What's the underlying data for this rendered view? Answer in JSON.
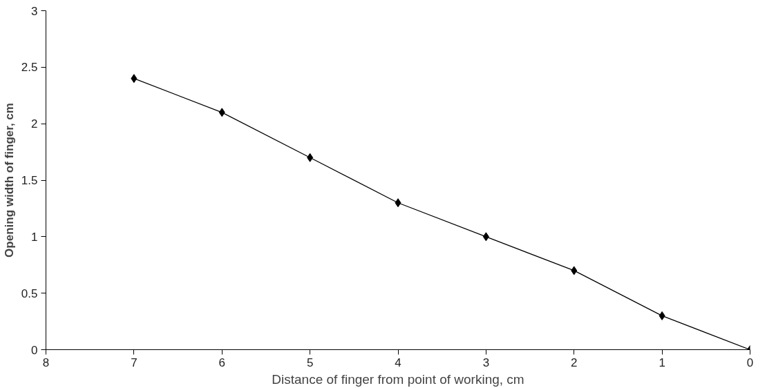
{
  "chart_data": {
    "type": "line",
    "xlabel": "Distance of finger from point of working, cm",
    "ylabel": "Opening width of finger, cm",
    "x": [
      7,
      6,
      5,
      4,
      3,
      2,
      1,
      0
    ],
    "series": [
      {
        "color": "#000000",
        "values": [
          2.4,
          2.1,
          1.7,
          1.3,
          1.0,
          0.7,
          0.3,
          0.0
        ]
      }
    ],
    "xlim": [
      8,
      0
    ],
    "ylim": [
      0,
      3
    ],
    "xticks": [
      8,
      7,
      6,
      5,
      4,
      3,
      2,
      1,
      0
    ],
    "yticks": [
      0,
      0.5,
      1,
      1.5,
      2,
      2.5,
      3
    ],
    "marker": "diamond",
    "line_style": "solid",
    "grid": false
  }
}
